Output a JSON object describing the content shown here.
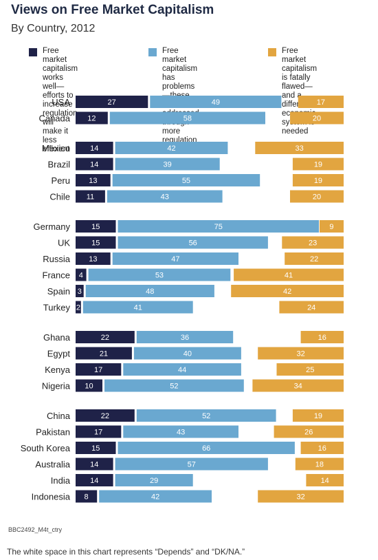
{
  "title": "Views on Free Market Capitalism",
  "subtitle": "By Country, 2012",
  "legend": [
    {
      "label": "Free market capitalism\nworks well—efforts to\nincrease regulation will\nmake it less efficient",
      "color": "#1f2248"
    },
    {
      "label": "Free market capitalism\nhas problems—these\ncan be addressed\nthrough more regulation",
      "color": "#6aa8d0"
    },
    {
      "label": "Free market capitalism\nis fatally flawed—and a\ndifferent economic\nsystem is needed",
      "color": "#e2a540"
    }
  ],
  "source": "BBC2492_M4t_ctry",
  "note": "The white space in this chart represents “Depends” and “DK/NA.”",
  "chart_data": {
    "type": "bar",
    "stacked": true,
    "orientation": "horizontal",
    "groups": [
      [
        "USA",
        "Canada"
      ],
      [
        "Mexico",
        "Brazil",
        "Peru",
        "Chile"
      ],
      [
        "Germany",
        "UK",
        "Russia",
        "France",
        "Spain",
        "Turkey"
      ],
      [
        "Ghana",
        "Egypt",
        "Kenya",
        "Nigeria"
      ],
      [
        "China",
        "Pakistan",
        "South Korea",
        "Australia",
        "India",
        "Indonesia"
      ]
    ],
    "categories": [
      "USA",
      "Canada",
      "Mexico",
      "Brazil",
      "Peru",
      "Chile",
      "Germany",
      "UK",
      "Russia",
      "France",
      "Spain",
      "Turkey",
      "Ghana",
      "Egypt",
      "Kenya",
      "Nigeria",
      "China",
      "Pakistan",
      "South Korea",
      "Australia",
      "India",
      "Indonesia"
    ],
    "series": [
      {
        "name": "Free market capitalism works well—efforts to increase regulation will make it less efficient",
        "color": "#1f2248",
        "values": [
          27,
          12,
          14,
          14,
          13,
          11,
          15,
          15,
          13,
          4,
          3,
          2,
          22,
          21,
          17,
          10,
          22,
          17,
          15,
          14,
          14,
          8
        ]
      },
      {
        "name": "Free market capitalism has problems—these can be addressed through more regulation",
        "color": "#6aa8d0",
        "values": [
          49,
          58,
          42,
          39,
          55,
          43,
          75,
          56,
          47,
          53,
          48,
          41,
          36,
          40,
          44,
          52,
          52,
          43,
          66,
          57,
          29,
          42
        ]
      },
      {
        "name": "Free market capitalism is fatally flawed—and a different economic system is needed",
        "color": "#e2a540",
        "values": [
          17,
          20,
          33,
          19,
          19,
          20,
          9,
          23,
          22,
          41,
          42,
          24,
          16,
          32,
          25,
          34,
          19,
          26,
          16,
          18,
          14,
          32
        ]
      }
    ],
    "xlim": [
      0,
      100
    ],
    "grid": false,
    "legend_position": "top"
  }
}
